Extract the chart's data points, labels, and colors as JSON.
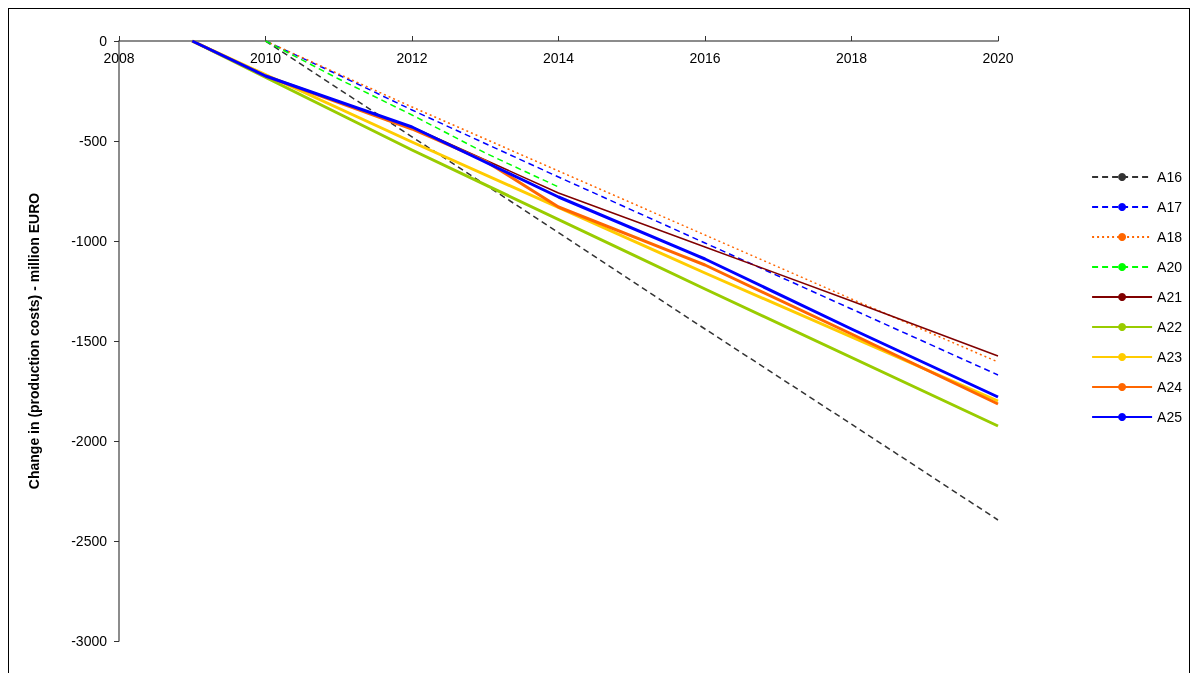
{
  "chart_data": {
    "type": "line",
    "ylabel": "Change in (production costs) - million EURO",
    "xlim": [
      2008,
      2020
    ],
    "xticks": [
      2008,
      2010,
      2012,
      2014,
      2016,
      2018,
      2020
    ],
    "ylim": [
      -3000,
      0
    ],
    "yticks": [
      -3000,
      -2500,
      -2000,
      -1500,
      -1000,
      -500,
      0
    ],
    "grid": false,
    "legend": "right",
    "marker": "none",
    "series": [
      {
        "name": "A16",
        "color": "#333333",
        "line_style": "dashed",
        "x": [
          2010,
          2012,
          2014,
          2016,
          2018,
          2020
        ],
        "values": [
          0,
          -479,
          -958,
          -1440,
          -1916,
          -2395
        ]
      },
      {
        "name": "A17",
        "color": "#0000ff",
        "line_style": "dashed",
        "x": [
          2010,
          2011,
          2012,
          2014,
          2016,
          2018,
          2020
        ],
        "values": [
          0,
          -170,
          -345,
          -680,
          -1010,
          -1340,
          -1670
        ]
      },
      {
        "name": "A18",
        "color": "#ff6600",
        "line_style": "dotted",
        "x": [
          2010,
          2011,
          2012,
          2014,
          2016,
          2018,
          2020
        ],
        "values": [
          0,
          -165,
          -330,
          -650,
          -970,
          -1290,
          -1605
        ]
      },
      {
        "name": "A20",
        "color": "#00ff00",
        "line_style": "dashed",
        "x": [
          2010,
          2011,
          2012,
          2013,
          2014
        ],
        "values": [
          0,
          -190,
          -370,
          -560,
          -730
        ]
      },
      {
        "name": "A21",
        "color": "#800000",
        "line_style": "solid",
        "x": [
          2009,
          2010,
          2012,
          2014,
          2016,
          2018,
          2020
        ],
        "values": [
          0,
          -175,
          -430,
          -760,
          -1030,
          -1300,
          -1575
        ]
      },
      {
        "name": "A22",
        "color": "#99cc00",
        "line_style": "solid",
        "x": [
          2009,
          2012,
          2016,
          2020
        ],
        "values": [
          0,
          -545,
          -1240,
          -1925
        ]
      },
      {
        "name": "A23",
        "color": "#ffcc00",
        "line_style": "solid",
        "x": [
          2009,
          2012,
          2016,
          2020
        ],
        "values": [
          0,
          -505,
          -1160,
          -1800
        ]
      },
      {
        "name": "A24",
        "color": "#ff6600",
        "line_style": "solid",
        "x": [
          2009,
          2010,
          2012,
          2013,
          2014,
          2016,
          2018,
          2020
        ],
        "values": [
          0,
          -175,
          -440,
          -600,
          -830,
          -1120,
          -1465,
          -1815
        ]
      },
      {
        "name": "A25",
        "color": "#0000ff",
        "line_style": "solid",
        "x": [
          2009,
          2010,
          2012,
          2014,
          2016,
          2018,
          2020
        ],
        "values": [
          0,
          -175,
          -430,
          -780,
          -1090,
          -1440,
          -1780
        ]
      }
    ]
  }
}
